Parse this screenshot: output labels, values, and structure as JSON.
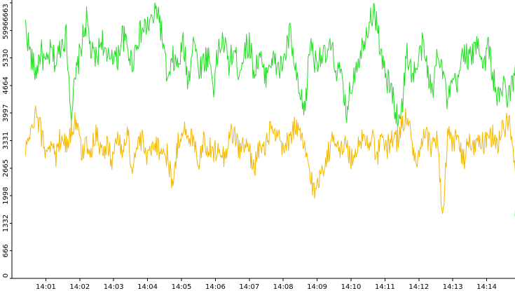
{
  "chart_data": {
    "type": "line",
    "y_ticks": [
      "0",
      "666",
      "1332",
      "1998",
      "2665",
      "3331",
      "3997",
      "4664",
      "5330",
      "5996",
      "6663"
    ],
    "x_ticks": [
      "14:01",
      "14:02",
      "14:03",
      "14:04",
      "14:05",
      "14:06",
      "14:07",
      "14:08",
      "14:09",
      "14:10",
      "14:11",
      "14:12",
      "14:13",
      "14:14"
    ],
    "ylim": [
      0,
      6663
    ],
    "xlim_minutes": [
      0.4,
      15.2
    ],
    "grid": false,
    "legend": "none",
    "series": [
      {
        "color": "#22dd22",
        "points": [
          [
            0.4,
            6100
          ],
          [
            0.55,
            5400
          ],
          [
            0.7,
            4950
          ],
          [
            0.85,
            5500
          ],
          [
            1.0,
            5100
          ],
          [
            1.15,
            5500
          ],
          [
            1.3,
            5200
          ],
          [
            1.45,
            5700
          ],
          [
            1.6,
            5850
          ],
          [
            1.75,
            4000
          ],
          [
            1.9,
            4950
          ],
          [
            2.05,
            5650
          ],
          [
            2.2,
            6250
          ],
          [
            2.35,
            5400
          ],
          [
            2.5,
            5300
          ],
          [
            2.65,
            5850
          ],
          [
            2.8,
            5200
          ],
          [
            2.95,
            5500
          ],
          [
            3.1,
            5250
          ],
          [
            3.25,
            5900
          ],
          [
            3.4,
            5600
          ],
          [
            3.55,
            5200
          ],
          [
            3.7,
            5800
          ],
          [
            3.85,
            6000
          ],
          [
            4.0,
            6100
          ],
          [
            4.15,
            6250
          ],
          [
            4.3,
            6550
          ],
          [
            4.45,
            5700
          ],
          [
            4.6,
            4700
          ],
          [
            4.75,
            5300
          ],
          [
            4.9,
            5100
          ],
          [
            5.05,
            5700
          ],
          [
            5.2,
            4700
          ],
          [
            5.35,
            5900
          ],
          [
            5.5,
            5050
          ],
          [
            5.65,
            5250
          ],
          [
            5.8,
            5400
          ],
          [
            5.95,
            4650
          ],
          [
            6.1,
            5600
          ],
          [
            6.25,
            5700
          ],
          [
            6.4,
            5200
          ],
          [
            6.55,
            5500
          ],
          [
            6.7,
            5000
          ],
          [
            6.85,
            5500
          ],
          [
            7.0,
            5700
          ],
          [
            7.15,
            4950
          ],
          [
            7.3,
            5450
          ],
          [
            7.45,
            4800
          ],
          [
            7.6,
            5300
          ],
          [
            7.75,
            5200
          ],
          [
            7.9,
            5050
          ],
          [
            8.05,
            5350
          ],
          [
            8.2,
            5950
          ],
          [
            8.35,
            5000
          ],
          [
            8.5,
            4300
          ],
          [
            8.65,
            4100
          ],
          [
            8.8,
            5800
          ],
          [
            8.95,
            5200
          ],
          [
            9.1,
            5450
          ],
          [
            9.25,
            5300
          ],
          [
            9.4,
            5600
          ],
          [
            9.55,
            5100
          ],
          [
            9.7,
            4900
          ],
          [
            9.85,
            4000
          ],
          [
            10.0,
            4600
          ],
          [
            10.15,
            5200
          ],
          [
            10.3,
            5500
          ],
          [
            10.45,
            6000
          ],
          [
            10.6,
            6400
          ],
          [
            10.75,
            6300
          ],
          [
            10.9,
            5300
          ],
          [
            11.05,
            4800
          ],
          [
            11.2,
            4550
          ],
          [
            11.35,
            3900
          ],
          [
            11.5,
            4100
          ],
          [
            11.65,
            5500
          ],
          [
            11.8,
            4900
          ],
          [
            11.95,
            5100
          ],
          [
            12.1,
            5650
          ],
          [
            12.25,
            5100
          ],
          [
            12.4,
            4400
          ],
          [
            12.55,
            5600
          ],
          [
            12.7,
            5100
          ],
          [
            12.85,
            4200
          ],
          [
            13.0,
            4750
          ],
          [
            13.15,
            4650
          ],
          [
            13.3,
            5600
          ],
          [
            13.45,
            5300
          ],
          [
            13.6,
            5400
          ],
          [
            13.75,
            5800
          ],
          [
            13.9,
            5100
          ],
          [
            14.05,
            5650
          ],
          [
            14.2,
            4800
          ],
          [
            14.35,
            4300
          ],
          [
            14.5,
            4700
          ],
          [
            14.65,
            4350
          ],
          [
            14.8,
            4850
          ],
          [
            14.95,
            5300
          ],
          [
            15.1,
            5650
          ]
        ]
      },
      {
        "color": "#f5b800",
        "points": [
          [
            0.4,
            3100
          ],
          [
            0.55,
            3400
          ],
          [
            0.7,
            3950
          ],
          [
            0.85,
            3550
          ],
          [
            1.0,
            3050
          ],
          [
            1.15,
            3350
          ],
          [
            1.3,
            2900
          ],
          [
            1.45,
            3500
          ],
          [
            1.6,
            3200
          ],
          [
            1.75,
            3600
          ],
          [
            1.9,
            3850
          ],
          [
            2.05,
            3000
          ],
          [
            2.2,
            3300
          ],
          [
            2.35,
            3100
          ],
          [
            2.5,
            3600
          ],
          [
            2.65,
            3000
          ],
          [
            2.8,
            3200
          ],
          [
            2.95,
            2900
          ],
          [
            3.1,
            3400
          ],
          [
            3.25,
            3050
          ],
          [
            3.4,
            3600
          ],
          [
            3.55,
            2600
          ],
          [
            3.7,
            3250
          ],
          [
            3.85,
            3300
          ],
          [
            4.0,
            2850
          ],
          [
            4.15,
            3350
          ],
          [
            4.3,
            3200
          ],
          [
            4.45,
            3050
          ],
          [
            4.6,
            2950
          ],
          [
            4.75,
            2200
          ],
          [
            4.9,
            3300
          ],
          [
            5.05,
            3700
          ],
          [
            5.2,
            3250
          ],
          [
            5.35,
            3500
          ],
          [
            5.5,
            2800
          ],
          [
            5.65,
            3350
          ],
          [
            5.8,
            3150
          ],
          [
            5.95,
            3000
          ],
          [
            6.1,
            3300
          ],
          [
            6.25,
            2900
          ],
          [
            6.4,
            3400
          ],
          [
            6.55,
            3550
          ],
          [
            6.7,
            3100
          ],
          [
            6.85,
            3250
          ],
          [
            7.0,
            3050
          ],
          [
            7.15,
            2700
          ],
          [
            7.3,
            3200
          ],
          [
            7.45,
            3000
          ],
          [
            7.6,
            3600
          ],
          [
            7.75,
            3400
          ],
          [
            7.9,
            3300
          ],
          [
            8.05,
            3050
          ],
          [
            8.2,
            3450
          ],
          [
            8.35,
            3700
          ],
          [
            8.5,
            3400
          ],
          [
            8.65,
            3100
          ],
          [
            8.8,
            2500
          ],
          [
            8.95,
            2000
          ],
          [
            9.1,
            2600
          ],
          [
            9.25,
            2850
          ],
          [
            9.4,
            3200
          ],
          [
            9.55,
            3500
          ],
          [
            9.7,
            3050
          ],
          [
            9.85,
            3300
          ],
          [
            10.0,
            2800
          ],
          [
            10.15,
            3150
          ],
          [
            10.3,
            3400
          ],
          [
            10.45,
            3250
          ],
          [
            10.6,
            3500
          ],
          [
            10.75,
            2900
          ],
          [
            10.9,
            3300
          ],
          [
            11.05,
            3150
          ],
          [
            11.2,
            3400
          ],
          [
            11.35,
            3350
          ],
          [
            11.5,
            3700
          ],
          [
            11.65,
            3950
          ],
          [
            11.8,
            3250
          ],
          [
            11.95,
            2650
          ],
          [
            12.1,
            3300
          ],
          [
            12.25,
            3400
          ],
          [
            12.4,
            3150
          ],
          [
            12.55,
            3500
          ],
          [
            12.7,
            1300
          ],
          [
            12.85,
            3450
          ],
          [
            13.0,
            3250
          ],
          [
            13.15,
            3500
          ],
          [
            13.3,
            2750
          ],
          [
            13.45,
            3300
          ],
          [
            13.6,
            3100
          ],
          [
            13.75,
            3450
          ],
          [
            13.9,
            3200
          ],
          [
            14.05,
            3300
          ],
          [
            14.2,
            3500
          ],
          [
            14.35,
            3250
          ],
          [
            14.5,
            3650
          ],
          [
            14.65,
            3850
          ],
          [
            14.8,
            2900
          ],
          [
            14.95,
            2650
          ],
          [
            15.1,
            1400
          ]
        ]
      }
    ]
  }
}
